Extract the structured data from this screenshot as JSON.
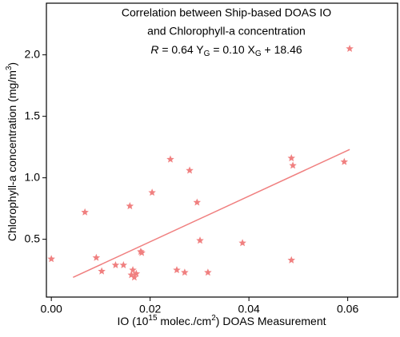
{
  "chart_data": {
    "type": "scatter",
    "title_lines": [
      "Correlation between Ship-based DOAS IO",
      "and Chlorophyll-a concentration"
    ],
    "annotation": [
      "R",
      " = 0.64  Y",
      "G",
      " = 0.10 X",
      "G",
      " + 18.46"
    ],
    "x_label": [
      "IO (10",
      "15",
      " molec./cm",
      "2",
      ") DOAS Measurement"
    ],
    "y_label": [
      "Chlorophyll-a concentration (mg/m",
      "3",
      ")"
    ],
    "color": "#f08080",
    "x": [
      0.0,
      0.0068,
      0.0091,
      0.0102,
      0.013,
      0.0146,
      0.0159,
      0.0162,
      0.0165,
      0.0168,
      0.0172,
      0.0181,
      0.0183,
      0.0204,
      0.0241,
      0.0254,
      0.027,
      0.028,
      0.0295,
      0.0301,
      0.0317,
      0.0387,
      0.0486,
      0.0489,
      0.0486,
      0.0593,
      0.0604
    ],
    "values": [
      0.34,
      0.72,
      0.35,
      0.24,
      0.29,
      0.29,
      0.77,
      0.21,
      0.25,
      0.19,
      0.22,
      0.4,
      0.39,
      0.88,
      1.15,
      0.25,
      0.23,
      1.06,
      0.8,
      0.49,
      0.23,
      0.47,
      1.16,
      1.1,
      0.33,
      1.13,
      2.05
    ],
    "fit": {
      "x": [
        0.0044,
        0.0604
      ],
      "values": [
        0.19,
        1.23
      ]
    },
    "xlim": [
      -0.001,
      0.0701
    ],
    "ylim": [
      0.03,
      2.42
    ],
    "xticks": [
      {
        "value": 0,
        "label": "0.00"
      },
      {
        "value": 0.02,
        "label": "0.02"
      },
      {
        "value": 0.04,
        "label": "0.04"
      },
      {
        "value": 0.06,
        "label": "0.06"
      }
    ],
    "yticks": [
      0.5,
      {
        "value": 1,
        "label": "1.0"
      },
      1.5,
      {
        "value": 2,
        "label": "2.0"
      }
    ]
  }
}
